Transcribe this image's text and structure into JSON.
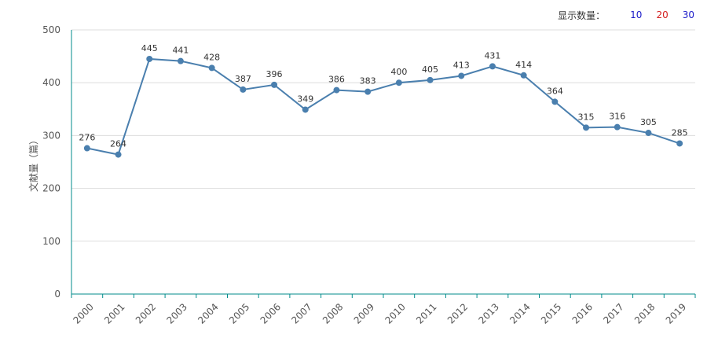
{
  "display_count": {
    "label": "显示数量：",
    "options": [
      {
        "label": "10",
        "color": "#1c1cc9"
      },
      {
        "label": "20",
        "color": "#d42020"
      },
      {
        "label": "30",
        "color": "#1c1cc9"
      }
    ]
  },
  "chart_data": {
    "type": "line",
    "title": "",
    "xlabel": "",
    "ylabel": "文献量（篇）",
    "ylim": [
      0,
      500
    ],
    "yticks": [
      0,
      100,
      200,
      300,
      400,
      500
    ],
    "grid": true,
    "categories": [
      "2000",
      "2001",
      "2002",
      "2003",
      "2004",
      "2005",
      "2006",
      "2007",
      "2008",
      "2009",
      "2010",
      "2011",
      "2012",
      "2013",
      "2014",
      "2015",
      "2016",
      "2017",
      "2018",
      "2019"
    ],
    "series": [
      {
        "values": [
          276,
          264,
          445,
          441,
          428,
          387,
          396,
          349,
          386,
          383,
          400,
          405,
          413,
          431,
          414,
          364,
          315,
          316,
          305,
          285
        ],
        "color": "#4a7fae"
      }
    ],
    "axis_color": "#008b8b"
  }
}
